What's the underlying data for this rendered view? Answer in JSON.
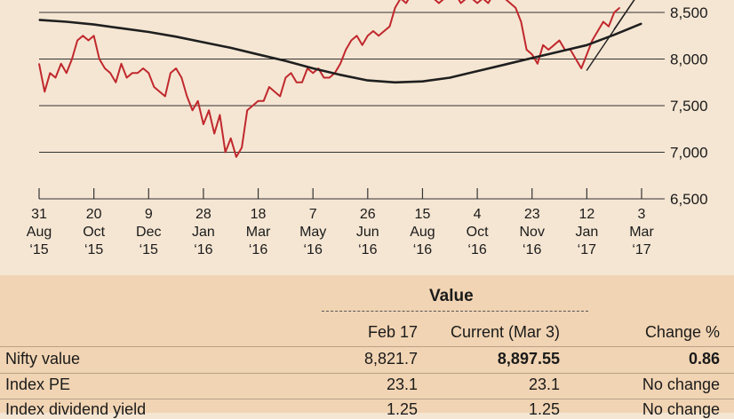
{
  "chart_data": {
    "type": "line",
    "title": "",
    "xlabel": "",
    "ylabel": "",
    "ylim": [
      6500,
      8750
    ],
    "y_ticks": [
      "8,500",
      "8,000",
      "7,500",
      "7,000",
      "6,500"
    ],
    "y_tick_values": [
      8500,
      8000,
      7500,
      7000,
      6500
    ],
    "x_ticks": [
      {
        "day": "31",
        "month": "Aug",
        "year": "‘15",
        "index": 0
      },
      {
        "day": "20",
        "month": "Oct",
        "year": "‘15",
        "index": 1
      },
      {
        "day": "9",
        "month": "Dec",
        "year": "‘15",
        "index": 2
      },
      {
        "day": "28",
        "month": "Jan",
        "year": "‘16",
        "index": 3
      },
      {
        "day": "18",
        "month": "Mar",
        "year": "‘16",
        "index": 4
      },
      {
        "day": "7",
        "month": "May",
        "year": "‘16",
        "index": 5
      },
      {
        "day": "26",
        "month": "Jun",
        "year": "‘16",
        "index": 6
      },
      {
        "day": "15",
        "month": "Aug",
        "year": "‘16",
        "index": 7
      },
      {
        "day": "4",
        "month": "Oct",
        "year": "‘16",
        "index": 8
      },
      {
        "day": "23",
        "month": "Nov",
        "year": "‘16",
        "index": 9
      },
      {
        "day": "12",
        "month": "Jan",
        "year": "‘17",
        "index": 10
      },
      {
        "day": "3",
        "month": "Mar",
        "year": "‘17",
        "index": 11
      }
    ],
    "series": [
      {
        "color": "#c0282d",
        "x": [
          0,
          0.1,
          0.2,
          0.3,
          0.4,
          0.5,
          0.6,
          0.7,
          0.8,
          0.9,
          1.0,
          1.1,
          1.2,
          1.3,
          1.4,
          1.5,
          1.6,
          1.7,
          1.8,
          1.9,
          2.0,
          2.1,
          2.2,
          2.3,
          2.4,
          2.5,
          2.6,
          2.7,
          2.8,
          2.9,
          3.0,
          3.1,
          3.2,
          3.3,
          3.4,
          3.5,
          3.6,
          3.7,
          3.8,
          3.9,
          4.0,
          4.1,
          4.2,
          4.3,
          4.4,
          4.5,
          4.6,
          4.7,
          4.8,
          4.9,
          5.0,
          5.1,
          5.2,
          5.3,
          5.4,
          5.5,
          5.6,
          5.7,
          5.8,
          5.9,
          6.0,
          6.1,
          6.2,
          6.3,
          6.4,
          6.5,
          6.6,
          6.7,
          6.8,
          6.9,
          7.0,
          7.1,
          7.2,
          7.3,
          7.4,
          7.5,
          7.6,
          7.7,
          7.8,
          7.9,
          8.0,
          8.1,
          8.2,
          8.3,
          8.4,
          8.5,
          8.6,
          8.7,
          8.8,
          8.9,
          9.0,
          9.1,
          9.2,
          9.3,
          9.4,
          9.5,
          9.6,
          9.7,
          9.8,
          9.9,
          10.0,
          10.1,
          10.2,
          10.3,
          10.4,
          10.5,
          10.6
        ],
        "values": [
          7950,
          7650,
          7850,
          7800,
          7950,
          7850,
          8000,
          8200,
          8250,
          8200,
          8250,
          8000,
          7900,
          7850,
          7750,
          7950,
          7800,
          7850,
          7850,
          7900,
          7850,
          7700,
          7650,
          7600,
          7850,
          7900,
          7800,
          7600,
          7450,
          7550,
          7300,
          7450,
          7200,
          7400,
          7000,
          7150,
          6950,
          7050,
          7450,
          7500,
          7550,
          7550,
          7700,
          7650,
          7600,
          7800,
          7850,
          7750,
          7750,
          7900,
          7850,
          7900,
          7800,
          7800,
          7850,
          7950,
          8100,
          8200,
          8250,
          8150,
          8250,
          8300,
          8250,
          8300,
          8350,
          8550,
          8650,
          8600,
          8700,
          8650,
          8650,
          8700,
          8650,
          8600,
          8650,
          8700,
          8700,
          8600,
          8650,
          8650,
          8600,
          8650,
          8600,
          8700,
          8700,
          8650,
          8600,
          8550,
          8400,
          8100,
          8050,
          7950,
          8150,
          8100,
          8150,
          8200,
          8100,
          8100,
          8000,
          7900,
          8050,
          8200,
          8300,
          8400,
          8350,
          8500,
          8550
        ]
      },
      {
        "color": "#1f1f1f",
        "x": [
          0,
          0.5,
          1,
          1.5,
          2,
          2.5,
          3,
          3.5,
          4,
          4.5,
          5,
          5.5,
          6,
          6.5,
          7,
          7.5,
          8,
          8.5,
          9,
          9.5,
          10,
          10.5,
          11
        ],
        "values": [
          8420,
          8400,
          8370,
          8330,
          8290,
          8240,
          8180,
          8120,
          8050,
          7980,
          7900,
          7830,
          7770,
          7750,
          7760,
          7800,
          7870,
          7940,
          8010,
          8080,
          8150,
          8260,
          8380
        ]
      },
      {
        "color": "#1f1f1f",
        "x": [
          10.0,
          11.0
        ],
        "values": [
          7880,
          8750
        ]
      },
      {
        "color": "#1f1f1f",
        "x": [
          10.5,
          11.0
        ],
        "values": [
          8320,
          8750
        ]
      }
    ]
  },
  "table": {
    "group_header": "Value",
    "columns": [
      "",
      "Feb 17",
      "Current (Mar 3)",
      "Change %"
    ],
    "rows": [
      {
        "label": "Nifty value",
        "feb": "8,821.7",
        "current": "8,897.55",
        "change": "0.86"
      },
      {
        "label": "Index PE",
        "feb": "23.1",
        "current": "23.1",
        "change": "No change"
      },
      {
        "label": "Index dividend yield",
        "feb": "1.25",
        "current": "1.25",
        "change": "No change"
      }
    ]
  }
}
